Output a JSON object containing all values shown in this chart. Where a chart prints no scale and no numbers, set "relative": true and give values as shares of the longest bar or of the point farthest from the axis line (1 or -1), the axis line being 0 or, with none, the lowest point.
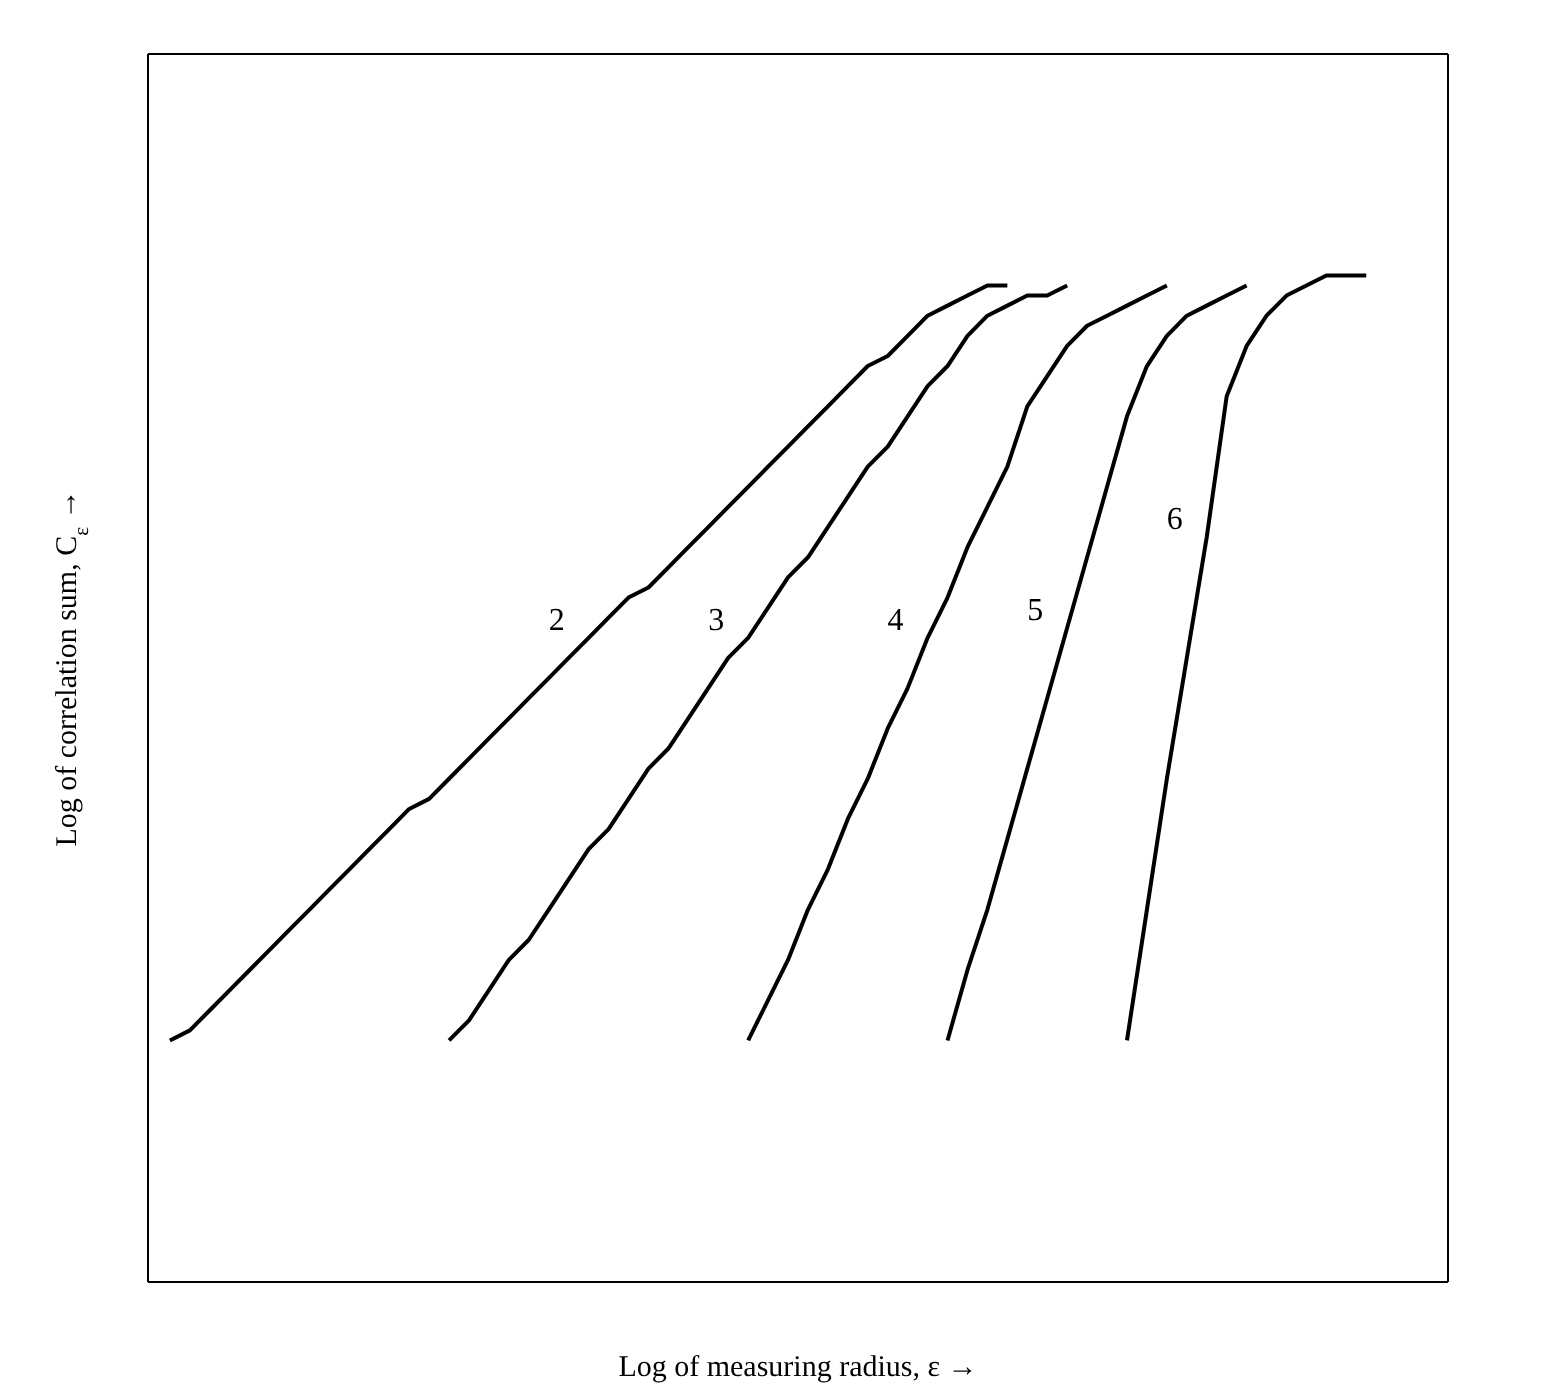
{
  "chart_data": {
    "type": "line",
    "relative": true,
    "xlabel": "Log of measuring radius, ε →",
    "ylabel": "Log of correlation sum, C$_{ε}$ →",
    "line_style": "solid",
    "marker": "none",
    "categories": [
      null,
      null,
      null,
      null,
      null,
      null,
      null,
      null,
      null,
      null,
      null,
      null,
      null,
      null,
      null,
      null,
      null,
      null,
      null,
      null,
      null,
      null,
      null,
      null,
      null,
      null,
      null,
      null,
      null,
      null,
      null,
      null,
      null,
      null,
      null,
      null,
      null,
      null,
      null,
      null,
      null,
      null,
      null,
      null,
      null,
      null,
      null,
      null,
      null,
      null,
      null,
      null,
      null,
      null,
      null,
      null,
      null,
      null,
      null,
      null,
      null
    ],
    "series": [
      {
        "name": "2",
        "color": "#000000",
        "values": [
          0.24,
          0.25,
          0.27,
          0.29,
          0.31,
          0.33,
          0.35,
          0.37,
          0.39,
          0.41,
          0.43,
          0.45,
          0.47,
          0.48,
          0.5,
          0.52,
          0.54,
          0.56,
          0.58,
          0.6,
          0.62,
          0.64,
          0.66,
          0.68,
          0.69,
          0.71,
          0.73,
          0.75,
          0.77,
          0.79,
          0.81,
          0.83,
          0.85,
          0.87,
          0.89,
          0.91,
          0.92,
          0.94,
          0.96,
          0.97,
          0.98,
          0.99,
          0.99,
          null,
          null,
          null,
          null,
          null,
          null,
          null,
          null,
          null,
          null,
          null,
          null,
          null,
          null,
          null,
          null,
          null,
          null
        ]
      },
      {
        "name": "3",
        "color": "#000000",
        "values": [
          null,
          null,
          null,
          null,
          null,
          null,
          null,
          null,
          null,
          null,
          null,
          null,
          null,
          null,
          0.24,
          0.26,
          0.29,
          0.32,
          0.34,
          0.37,
          0.4,
          0.43,
          0.45,
          0.48,
          0.51,
          0.53,
          0.56,
          0.59,
          0.62,
          0.64,
          0.67,
          0.7,
          0.72,
          0.75,
          0.78,
          0.81,
          0.83,
          0.86,
          0.89,
          0.91,
          0.94,
          0.96,
          0.97,
          0.98,
          0.98,
          0.99,
          null,
          null,
          null,
          null,
          null,
          null,
          null,
          null,
          null,
          null,
          null,
          null,
          null,
          null,
          null
        ]
      },
      {
        "name": "4",
        "color": "#000000",
        "values": [
          null,
          null,
          null,
          null,
          null,
          null,
          null,
          null,
          null,
          null,
          null,
          null,
          null,
          null,
          null,
          null,
          null,
          null,
          null,
          null,
          null,
          null,
          null,
          null,
          null,
          null,
          null,
          null,
          null,
          0.24,
          0.28,
          0.32,
          0.37,
          0.41,
          0.46,
          0.5,
          0.55,
          0.59,
          0.64,
          0.68,
          0.73,
          0.77,
          0.81,
          0.87,
          0.9,
          0.93,
          0.95,
          0.96,
          0.97,
          0.98,
          0.99,
          null,
          null,
          null,
          null,
          null,
          null,
          null,
          null,
          null,
          null
        ]
      },
      {
        "name": "5",
        "color": "#000000",
        "values": [
          null,
          null,
          null,
          null,
          null,
          null,
          null,
          null,
          null,
          null,
          null,
          null,
          null,
          null,
          null,
          null,
          null,
          null,
          null,
          null,
          null,
          null,
          null,
          null,
          null,
          null,
          null,
          null,
          null,
          null,
          null,
          null,
          null,
          null,
          null,
          null,
          null,
          null,
          null,
          0.24,
          0.31,
          0.37,
          0.44,
          0.51,
          0.58,
          0.65,
          0.72,
          0.79,
          0.86,
          0.91,
          0.94,
          0.96,
          0.97,
          0.98,
          0.99,
          null,
          null,
          null,
          null,
          null,
          null
        ]
      },
      {
        "name": "6",
        "color": "#000000",
        "values": [
          null,
          null,
          null,
          null,
          null,
          null,
          null,
          null,
          null,
          null,
          null,
          null,
          null,
          null,
          null,
          null,
          null,
          null,
          null,
          null,
          null,
          null,
          null,
          null,
          null,
          null,
          null,
          null,
          null,
          null,
          null,
          null,
          null,
          null,
          null,
          null,
          null,
          null,
          null,
          null,
          null,
          null,
          null,
          null,
          null,
          null,
          null,
          null,
          0.24,
          0.37,
          0.5,
          0.62,
          0.74,
          0.88,
          0.93,
          0.96,
          0.98,
          0.99,
          1,
          1,
          1
        ]
      }
    ]
  }
}
